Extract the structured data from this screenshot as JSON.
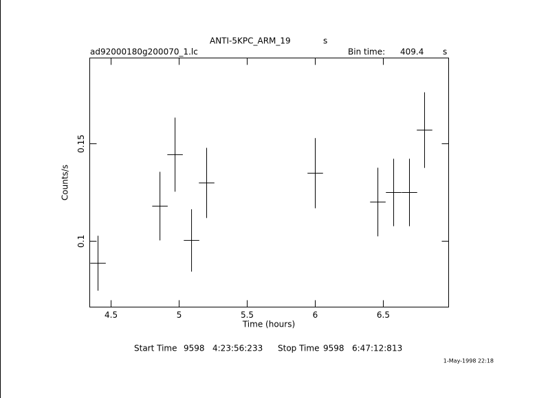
{
  "chart_data": {
    "type": "errorbar",
    "title": "ANTI-5KPC_ARM_19",
    "title_unit": "s",
    "file_name": "ad92000180g200070_1.lc",
    "bin_time_label": "Bin time:",
    "bin_time": "409.4",
    "bin_time_unit": "s",
    "x_label": "Time (hours)",
    "y_label": "Counts/s",
    "x": [
      4.404,
      4.859,
      4.97,
      5.091,
      5.202,
      6.0,
      6.46,
      6.576,
      6.692,
      6.803
    ],
    "values": [
      0.0887,
      0.118,
      0.1444,
      0.1004,
      0.1299,
      0.1349,
      0.1201,
      0.125,
      0.125,
      0.157
    ],
    "yerr": [
      0.0141,
      0.0176,
      0.019,
      0.016,
      0.018,
      0.018,
      0.0176,
      0.0173,
      0.0173,
      0.0194
    ],
    "xerr": [
      0.0569,
      0.0569,
      0.0569,
      0.0569,
      0.0569,
      0.0569,
      0.0569,
      0.0569,
      0.0569,
      0.0569
    ],
    "color": "#000000",
    "xlim": [
      4.343,
      6.98
    ],
    "ylim": [
      0.0662,
      0.194
    ],
    "xticks": [
      4.5,
      5,
      5.5,
      6,
      6.5
    ],
    "yticks": [
      0.1,
      0.15
    ],
    "start_label": "Start Time",
    "start_day": "9598",
    "start_time": "4:23:56:233",
    "stop_label": "Stop Time",
    "stop_day": "9598",
    "stop_time": "6:47:12:813",
    "date_stamp": "1-May-1998 22:18"
  }
}
